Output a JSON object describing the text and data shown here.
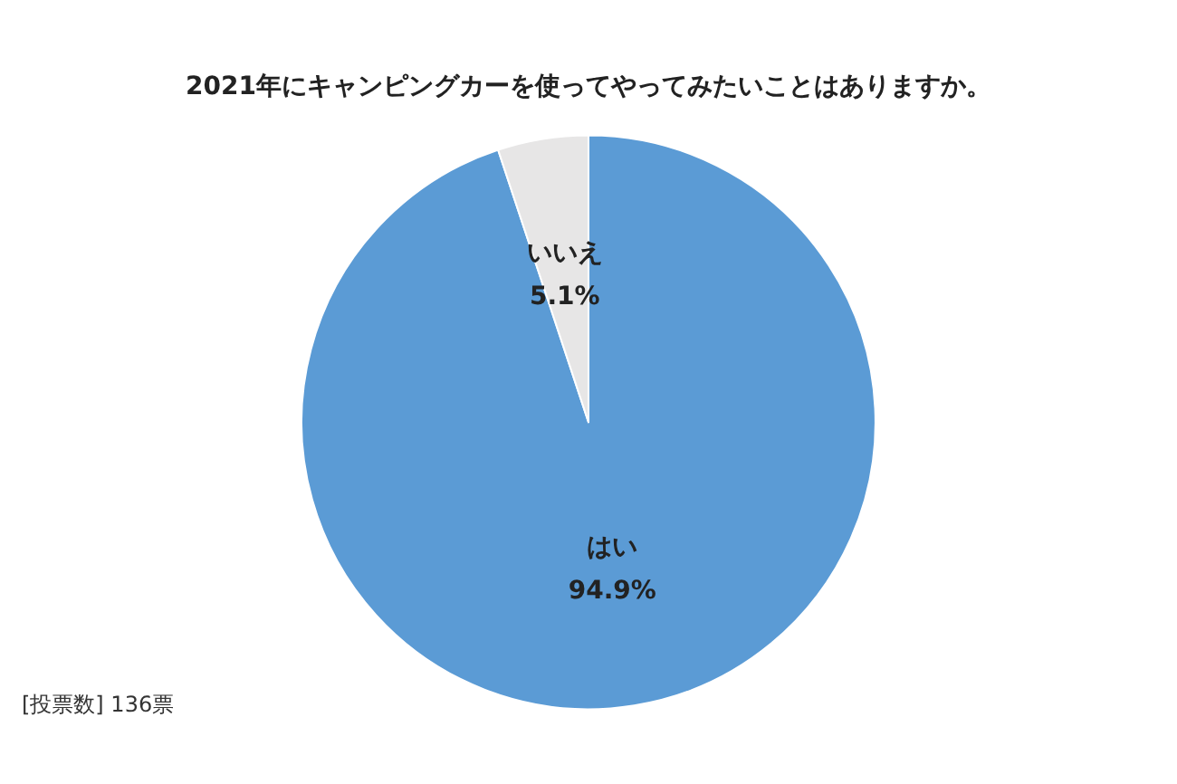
{
  "chart_data": {
    "type": "pie",
    "title": "2021年にキャンピングカーを使ってやってみたいことはありますか。",
    "categories": [
      "はい",
      "いいえ"
    ],
    "values": [
      94.9,
      5.1
    ],
    "colors": [
      "#5b9bd5",
      "#e7e6e6"
    ],
    "value_labels": [
      "94.9%",
      "5.1%"
    ],
    "annotations": [
      "[投票数] 136票"
    ],
    "legend": false
  }
}
